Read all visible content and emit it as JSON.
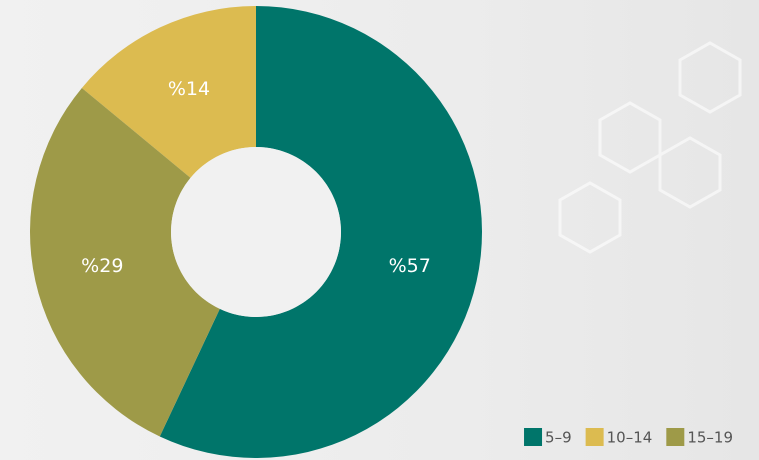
{
  "chart_data": {
    "type": "donut",
    "categories": [
      "5–9",
      "10–14",
      "15–19"
    ],
    "values": [
      57,
      14,
      29
    ],
    "value_labels": [
      "%57",
      "%14",
      "%29"
    ],
    "colors": [
      "#00756a",
      "#dcbb50",
      "#9e9a48"
    ],
    "start_angle": 205.2,
    "direction": "counterclockwise",
    "legend": "bottom-right"
  }
}
